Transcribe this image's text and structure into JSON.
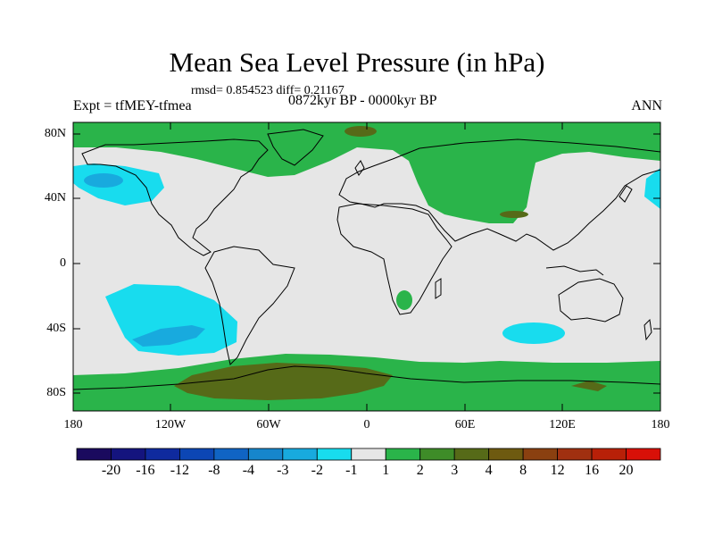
{
  "title": "Mean Sea Level Pressure (in hPa)",
  "stats": "rmsd= 0.854523 diff= 0.21167",
  "expt": "Expt = tfMEY-tfmea",
  "period": "0872kyr BP - 0000kyr BP",
  "season": "ANN",
  "lat_ticks": [
    "80N",
    "40N",
    "0",
    "40S",
    "80S"
  ],
  "lon_ticks": [
    "180",
    "120W",
    "60W",
    "0",
    "60E",
    "120E",
    "180"
  ],
  "colorbar": {
    "labels": [
      "-20",
      "-16",
      "-12",
      "-8",
      "-4",
      "-3",
      "-2",
      "-1",
      "1",
      "2",
      "3",
      "4",
      "8",
      "12",
      "16",
      "20"
    ],
    "colors": [
      "#1a0a5e",
      "#14147e",
      "#0f2a9e",
      "#0c46b4",
      "#1064c4",
      "#1686cc",
      "#18aade",
      "#18dcee",
      "#e6e6e6",
      "#2ab44a",
      "#3e8c28",
      "#566a18",
      "#6e5a10",
      "#8a4010",
      "#a03010",
      "#b82008",
      "#d81008"
    ]
  }
}
